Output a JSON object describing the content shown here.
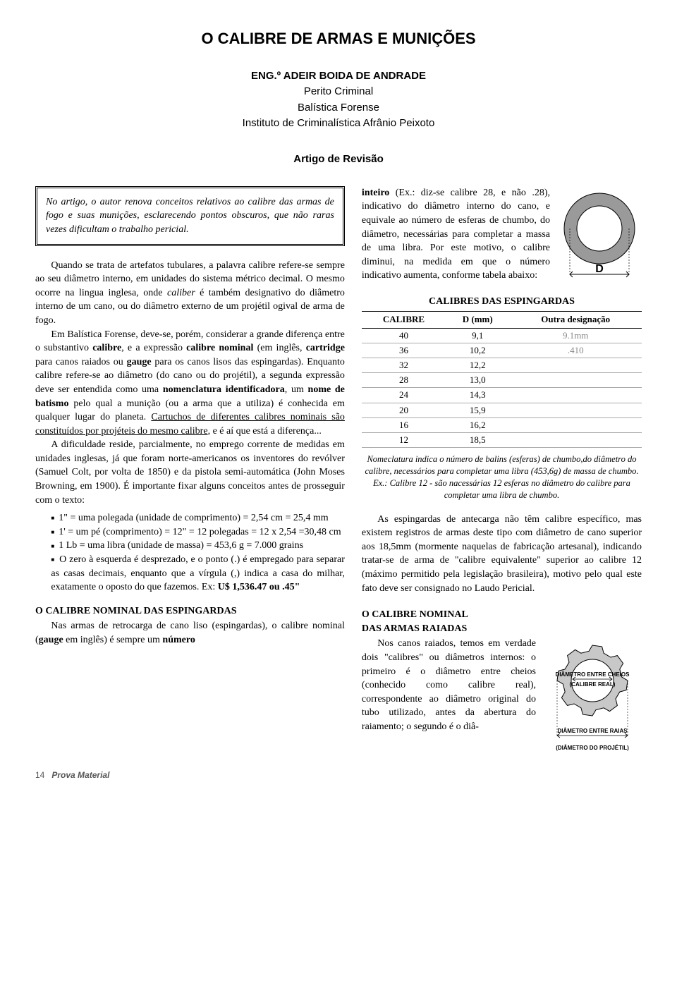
{
  "title": "O CALIBRE DE ARMAS E MUNIÇÕES",
  "author": {
    "name": "ENG.º ADEIR BOIDA DE ANDRADE",
    "role1": "Perito Criminal",
    "role2": "Balística Forense",
    "role3": "Instituto de Criminalística Afrânio Peixoto"
  },
  "section_label": "Artigo de Revisão",
  "abstract": "No artigo, o autor renova conceitos relativos ao calibre das armas de fogo e suas munições, esclarecendo pontos obscuros, que não raras vezes dificultam o trabalho pericial.",
  "left": {
    "p1a": "Quando se trata de artefatos tubulares, a palavra calibre refere-se sempre ao seu diâmetro interno, em unidades do sistema métrico decimal. O mesmo ocorre na lingua inglesa, onde ",
    "p1b_i": "caliber",
    "p1c": " é também designativo do diâmetro interno de um cano, ou do diâmetro externo de um projétil ogival de arma de fogo.",
    "p2a": "Em Balística Forense, deve-se, porém, considerar a grande diferença entre o substantivo ",
    "p2b_b": "calibre",
    "p2c": ", e a expressão ",
    "p2d_b": "calibre nominal",
    "p2e": " (em inglês, ",
    "p2f_b": "cartridge",
    "p2g": " para canos raiados ou ",
    "p2h_b": "gauge",
    "p2i": " para os canos lisos das espingardas). Enquanto calibre refere-se ao diâmetro (do cano ou do projétil), a segunda expressão deve ser entendida como uma ",
    "p2j_b": "nomenclatura identificadora",
    "p2k": ", um ",
    "p2l_b": "nome de batismo",
    "p2m": " pelo qual a munição (ou a arma que a utiliza) é conhecida em qualquer lugar do planeta. ",
    "p2n_u": "Cartuchos de diferentes calibres nominais são constituídos por projéteis do mesmo calibre",
    "p2o": ", e é aí que está a diferença...",
    "p3": "A dificuldade reside, parcialmente, no emprego corrente de medidas em unidades inglesas, já que foram norte-americanos os inventores do revólver (Samuel Colt, por volta de 1850) e da pistola semi-automática (John Moses Browning, em 1900). É importante fixar alguns conceitos antes de prosseguir com o texto:",
    "b1": "1\" = uma polegada (unidade de comprimento) = 2,54 cm = 25,4 mm",
    "b2": "1' = um pé (comprimento) = 12\" = 12 polegadas = 12 x 2,54 =30,48 cm",
    "b3": "1 Lb = uma libra (unidade de massa) = 453,6 g = 7.000 grains",
    "b4a": "O zero à esquerda é desprezado, e o ponto (.) é empregado para separar as casas decimais, enquanto que a vírgula (,) indica a casa do milhar, exatamente o oposto do que fazemos. Ex: ",
    "b4b_b": "U$ 1,536.47 ou .45\"",
    "sub1": "O CALIBRE NOMINAL DAS ESPINGARDAS",
    "p4a": "Nas armas de retrocarga de cano liso (espingardas), o calibre nominal (",
    "p4b_b": "gauge",
    "p4c": " em inglês) é sempre um ",
    "p4d_b": "número"
  },
  "right": {
    "p_top_a_b": "inteiro",
    "p_top_b": " (Ex.: diz-se calibre 28, e não .28), indicativo do diâmetro interno do cano, e equivale ao número de esferas de chumbo, do diâmetro, necessárias para completar a massa de uma libra. Por este motivo, o calibre diminui, na medida em que o número indicativo aumenta, conforme tabela abaixo:",
    "ring_label_D": "D",
    "table": {
      "title": "CALIBRES DAS ESPINGARDAS",
      "headers": [
        "CALIBRE",
        "D (mm)",
        "Outra designação"
      ],
      "rows": [
        [
          "40",
          "9,1",
          "9.1mm"
        ],
        [
          "36",
          "10,2",
          ".410"
        ],
        [
          "32",
          "12,2",
          ""
        ],
        [
          "28",
          "13,0",
          ""
        ],
        [
          "24",
          "14,3",
          ""
        ],
        [
          "20",
          "15,9",
          ""
        ],
        [
          "16",
          "16,2",
          ""
        ],
        [
          "12",
          "18,5",
          ""
        ]
      ],
      "caption": "Nomeclatura indica o número de balins (esferas) de chumbo,do diâmetro do calibre, necessários para completar uma libra (453,6g) de massa de chumbo.\nEx.: Calibre 12 - são nacessárias 12 esferas no diâmetro do calibre para completar uma libra de chumbo."
    },
    "p_mid": "As espingardas de antecarga não têm calibre específico, mas existem registros de armas deste tipo com diâmetro de cano superior aos 18,5mm (mormente naquelas de fabricação artesanal), indicando tratar-se de arma de \"calibre equivalente\" superior ao calibre 12 (máximo permitido pela legislação brasileira), motivo pelo qual este fato deve ser consignado no Laudo Pericial.",
    "sub2_l1": "O CALIBRE NOMINAL",
    "sub2_l2": "DAS ARMAS RAIADAS",
    "p_bot": "Nos canos raiados, temos em verdade dois \"calibres\" ou diâmetros internos: o primeiro é o diâmetro entre cheios (conhecido como calibre real), correspondente ao diâmetro original do tubo utilizado, antes da abertura do raiamento; o segundo é o diâ-",
    "gear": {
      "label1_l1": "DIÂMETRO ENTRE CHEIOS",
      "label1_l2": "(CALIBRE REAL)",
      "label2": "DIÂMETRO ENTRE RAIAS",
      "label3": "(DIÂMETRO DO PROJÉTIL)"
    }
  },
  "footer": {
    "page": "14",
    "mag": "Prova Material"
  },
  "colors": {
    "ring_fill": "#9a9a9a",
    "ring_stroke": "#000000",
    "gear_fill": "#c8c8c8",
    "gear_stroke": "#000000",
    "table_border": "#000000",
    "table_row_border": "#aaaaaa"
  }
}
